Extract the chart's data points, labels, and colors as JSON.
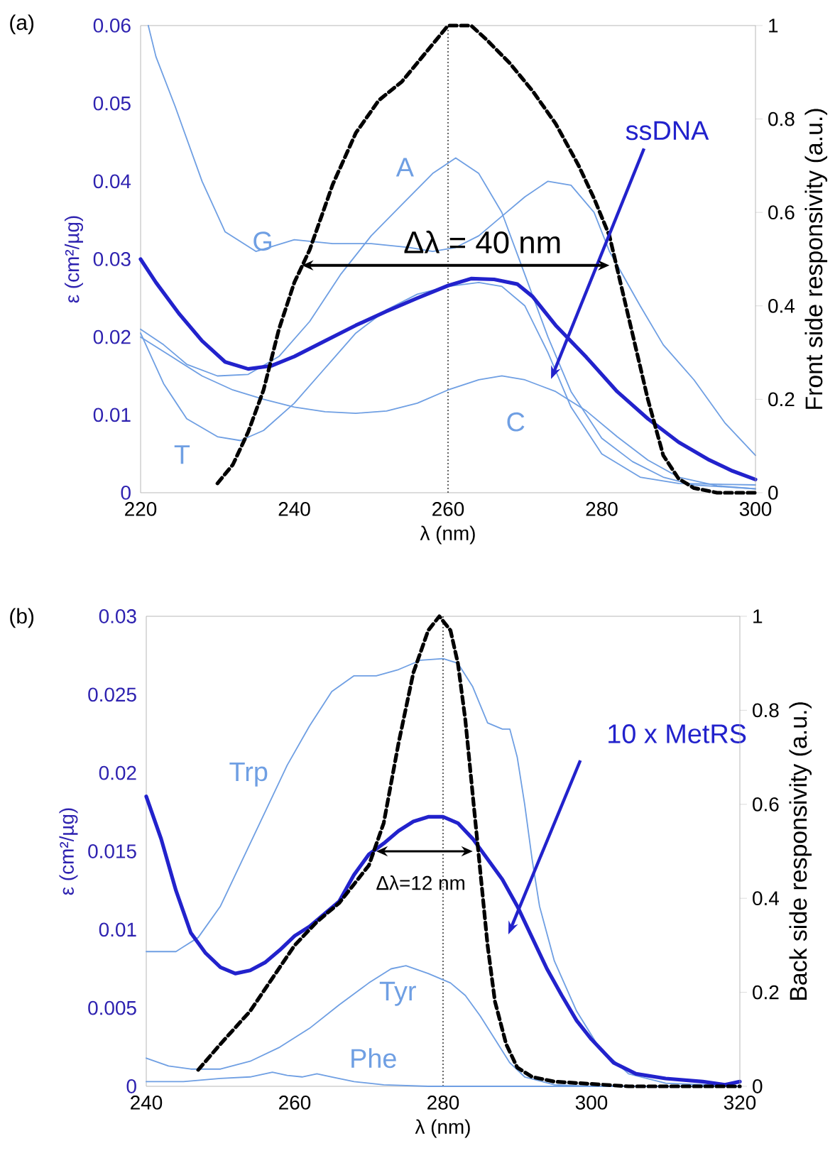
{
  "chart_data": [
    {
      "type": "line",
      "xlabel": "λ (nm)",
      "ylabel": "ε (cm²/µg)",
      "y2label": "Front side responsivity (a.u.)",
      "xlim": [
        220,
        300
      ],
      "xticks": [
        220,
        240,
        260,
        280,
        300
      ],
      "ylim": [
        0,
        0.06
      ],
      "yticks": [
        0,
        0.01,
        0.02,
        0.03,
        0.04,
        0.05,
        0.06
      ],
      "y2lim": [
        0,
        1
      ],
      "y2ticks": [
        0,
        0.2,
        0.4,
        0.6,
        0.8,
        1
      ],
      "series": [
        {
          "name": "A",
          "color": "#6f9fe3",
          "x": [
            220,
            223,
            226,
            230,
            234,
            238,
            242,
            246,
            250,
            254,
            258,
            261,
            264,
            267,
            270,
            273,
            276,
            280,
            284,
            288,
            292,
            300
          ],
          "values": [
            0.021,
            0.019,
            0.0165,
            0.015,
            0.0152,
            0.0175,
            0.022,
            0.028,
            0.033,
            0.037,
            0.041,
            0.043,
            0.041,
            0.036,
            0.028,
            0.02,
            0.013,
            0.007,
            0.004,
            0.002,
            0.001,
            0.0005
          ]
        },
        {
          "name": "G",
          "color": "#6f9fe3",
          "x": [
            221,
            222,
            224.5,
            228,
            231,
            235,
            240,
            245,
            250,
            255,
            258,
            261,
            264,
            267,
            270,
            273,
            276,
            279,
            281,
            285,
            288,
            292,
            296,
            300
          ],
          "values": [
            0.06,
            0.056,
            0.0496,
            0.04,
            0.0335,
            0.031,
            0.0325,
            0.032,
            0.032,
            0.0315,
            0.031,
            0.0315,
            0.033,
            0.0355,
            0.038,
            0.04,
            0.0395,
            0.036,
            0.031,
            0.024,
            0.019,
            0.0145,
            0.009,
            0.0048
          ]
        },
        {
          "name": "T",
          "color": "#6f9fe3",
          "x": [
            220,
            223,
            226,
            230,
            233,
            236,
            240,
            244,
            248,
            252,
            256,
            260,
            264,
            267,
            270,
            273,
            276,
            280,
            285,
            290,
            300
          ],
          "values": [
            0.0205,
            0.014,
            0.0095,
            0.0072,
            0.0067,
            0.008,
            0.0115,
            0.016,
            0.0205,
            0.0235,
            0.0255,
            0.0265,
            0.027,
            0.0265,
            0.024,
            0.018,
            0.011,
            0.005,
            0.002,
            0.0012,
            0.001
          ]
        },
        {
          "name": "C",
          "color": "#6f9fe3",
          "x": [
            220,
            224,
            228,
            232,
            236,
            240,
            244,
            248,
            252,
            256,
            260,
            264,
            267,
            270,
            274,
            278,
            282,
            286,
            290,
            295,
            300
          ],
          "values": [
            0.02,
            0.0175,
            0.015,
            0.0132,
            0.012,
            0.011,
            0.0104,
            0.0102,
            0.0105,
            0.0115,
            0.0132,
            0.0145,
            0.015,
            0.0145,
            0.013,
            0.0105,
            0.0072,
            0.0042,
            0.002,
            0.0009,
            0.0005
          ]
        },
        {
          "name": "ssDNA",
          "color": "#2222cc",
          "x": [
            220,
            222,
            225,
            228,
            231,
            234,
            237,
            240,
            244,
            248,
            252,
            256,
            260,
            263,
            266,
            269,
            271,
            274,
            278,
            282,
            286,
            290,
            294,
            297,
            300
          ],
          "values": [
            0.03,
            0.027,
            0.023,
            0.0195,
            0.0168,
            0.0159,
            0.0163,
            0.0175,
            0.0195,
            0.0215,
            0.0233,
            0.025,
            0.0266,
            0.0275,
            0.0274,
            0.0268,
            0.0252,
            0.0215,
            0.0174,
            0.013,
            0.0095,
            0.0065,
            0.0042,
            0.0028,
            0.0017
          ]
        },
        {
          "color": "#000000",
          "axis": "y2",
          "line_style": "dashed",
          "x": [
            230,
            232,
            234,
            236,
            238,
            240,
            242,
            245,
            248,
            251,
            254,
            257,
            260,
            263,
            265,
            268,
            271,
            274,
            277,
            279,
            281,
            282,
            284,
            286,
            288,
            290,
            292,
            295,
            300
          ],
          "values": [
            0.02,
            0.06,
            0.13,
            0.22,
            0.35,
            0.45,
            0.52,
            0.66,
            0.77,
            0.84,
            0.88,
            0.94,
            1,
            1,
            0.97,
            0.92,
            0.86,
            0.79,
            0.7,
            0.63,
            0.55,
            0.48,
            0.34,
            0.2,
            0.08,
            0.03,
            0.01,
            0,
            0
          ]
        }
      ],
      "ref_lines": [
        {
          "axis": "x",
          "value": 260,
          "color": "#000000",
          "line_style": "dotted"
        }
      ],
      "annotations": [
        "(a)",
        "Δλ = 40 nm"
      ]
    },
    {
      "type": "line",
      "xlabel": "λ (nm)",
      "ylabel": "ε (cm²/µg)",
      "y2label": "Back side responsivity (a.u.)",
      "xlim": [
        240,
        320
      ],
      "xticks": [
        240,
        260,
        280,
        300,
        320
      ],
      "ylim": [
        0,
        0.03
      ],
      "yticks": [
        0,
        0.005,
        0.01,
        0.015,
        0.02,
        0.025,
        0.03
      ],
      "y2lim": [
        0,
        1
      ],
      "y2ticks": [
        0,
        0.2,
        0.4,
        0.6,
        0.8,
        1
      ],
      "series": [
        {
          "name": "Trp",
          "color": "#6f9fe3",
          "x": [
            240,
            244,
            247,
            250,
            253,
            256,
            259,
            262,
            265,
            268,
            271,
            274,
            277,
            280,
            282,
            284,
            286,
            288,
            289,
            290,
            291,
            292,
            293,
            295,
            298,
            301,
            305,
            310,
            320
          ],
          "values": [
            0.0086,
            0.0086,
            0.0095,
            0.0115,
            0.0145,
            0.0175,
            0.0205,
            0.023,
            0.0252,
            0.0262,
            0.0262,
            0.0266,
            0.0272,
            0.0273,
            0.027,
            0.0255,
            0.0232,
            0.0228,
            0.0228,
            0.021,
            0.018,
            0.0145,
            0.0115,
            0.008,
            0.0048,
            0.0025,
            0.0008,
            0.0002,
            0
          ]
        },
        {
          "name": "Tyr",
          "color": "#6f9fe3",
          "x": [
            240,
            243,
            246,
            250,
            254,
            258,
            262,
            266,
            270,
            273,
            275,
            278,
            281,
            283,
            285,
            287,
            289,
            291,
            295,
            300,
            320
          ],
          "values": [
            0.0018,
            0.0013,
            0.0011,
            0.0011,
            0.0016,
            0.0025,
            0.0037,
            0.0052,
            0.0066,
            0.0075,
            0.0077,
            0.0072,
            0.0066,
            0.0058,
            0.0045,
            0.003,
            0.0015,
            0.0006,
            0.0001,
            0,
            0
          ]
        },
        {
          "name": "Phe",
          "color": "#6f9fe3",
          "x": [
            240,
            245,
            250,
            254,
            257,
            259,
            261,
            263,
            265,
            268,
            272,
            278,
            320
          ],
          "values": [
            0.0003,
            0.0003,
            0.0005,
            0.0006,
            0.0009,
            0.0007,
            0.0006,
            0.0008,
            0.0006,
            0.0003,
            0.0001,
            0,
            0
          ]
        },
        {
          "name": "10 x MetRS",
          "color": "#2222cc",
          "x": [
            240,
            242,
            244,
            246,
            248,
            250,
            252,
            254,
            256,
            258,
            260,
            262,
            264,
            266,
            268,
            270,
            272,
            274,
            276,
            278,
            280,
            282,
            284,
            286,
            288,
            290,
            292,
            294,
            296,
            298,
            300,
            303,
            306,
            310,
            315,
            318,
            320
          ],
          "values": [
            0.0185,
            0.0158,
            0.0125,
            0.0098,
            0.0085,
            0.0076,
            0.0072,
            0.0074,
            0.0079,
            0.0087,
            0.0096,
            0.0102,
            0.011,
            0.0118,
            0.0135,
            0.0148,
            0.0155,
            0.0163,
            0.0169,
            0.0172,
            0.0172,
            0.0168,
            0.0158,
            0.0145,
            0.0132,
            0.0115,
            0.0095,
            0.0075,
            0.0058,
            0.0042,
            0.003,
            0.0015,
            0.0008,
            0.0005,
            0.0003,
            0.0001,
            0.0003
          ]
        },
        {
          "color": "#000000",
          "axis": "y2",
          "line_style": "dashed",
          "x": [
            247,
            250,
            254,
            257,
            260,
            263,
            266,
            268,
            270,
            272,
            274,
            276,
            278,
            279.5,
            281,
            282,
            283,
            284,
            285,
            286,
            287,
            288.5,
            290,
            292,
            295,
            300,
            305,
            320
          ],
          "values": [
            0.035,
            0.09,
            0.16,
            0.23,
            0.3,
            0.35,
            0.39,
            0.43,
            0.47,
            0.56,
            0.73,
            0.88,
            0.97,
            1,
            0.97,
            0.9,
            0.78,
            0.62,
            0.46,
            0.3,
            0.18,
            0.09,
            0.04,
            0.02,
            0.01,
            0.005,
            0,
            0
          ]
        }
      ],
      "ref_lines": [
        {
          "axis": "x",
          "value": 280,
          "color": "#000000",
          "line_style": "dotted"
        }
      ],
      "annotations": [
        "(b)",
        "Δλ=12 nm"
      ]
    }
  ]
}
